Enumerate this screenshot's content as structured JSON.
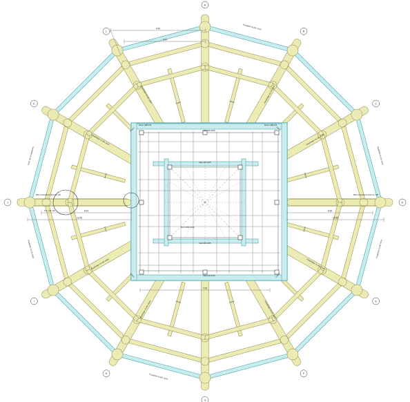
{
  "drawing": {
    "type": "timber-roof-framing-plan",
    "colors": {
      "beam_fill": "#ecebb3",
      "beam_edge": "#9c9860",
      "purlin_fill": "#c9ecee",
      "purlin_edge": "#4aa7b1",
      "line": "#555555",
      "dim": "#666666"
    },
    "axis_labels": [
      "A",
      "B",
      "C",
      "D",
      "E",
      "F",
      "G",
      "H",
      "I",
      "J",
      "K",
      "L"
    ],
    "rafter_labels": [
      "Hauptträger GL24h 16/40",
      "Hauptträger GL24h 16/40",
      "Hauptträger GL24h 16/40",
      "Hauptträger GL24h 16/40",
      "Hauptträger GL24h 16/40",
      "Hauptträger GL24h 16/40",
      "Hauptträger GL24h 16/40",
      "Hauptträger GL24h 16/40"
    ],
    "purlin_labels": [
      "Traufpfette GL24h 16/24",
      "Traufpfette GL24h 16/24",
      "Traufpfette GL24h 16/24",
      "Traufpfette GL24h 16/24",
      "Traufpfette GL24h 16/24",
      "Traufpfette GL24h 16/24"
    ],
    "field_labels": [
      "3.0mm",
      "3.0mm",
      "3.0mm",
      "3.0mm",
      "3.0mm",
      "3.0mm",
      "3.0mm",
      "3.0mm",
      "3.0mm",
      "3.0mm",
      "3.0mm",
      "3.0mm"
    ],
    "core_labels": {
      "top": "HEA 200 S235",
      "bottom": "HEA 200 S235",
      "inner_top": "HEA 160 S235",
      "inner_bottom": "HEA 160 S235",
      "left": "Stütze HEB 200",
      "right": "Stütze HEB 200",
      "center": "Rost 20/20 S235"
    },
    "dims": {
      "overall_left": "14.95",
      "overall_right": "14.95",
      "mid_left": "6.53",
      "mid_right": "6.53",
      "core": "7.00",
      "top_span": "4.40",
      "top_span2": "3.20"
    },
    "callouts": {
      "left_node": "BSH Knotenblech d=10 GL 24h",
      "left_node2": "Pos. 101-104",
      "right_node": "BSH Knotenblech d=10 GL 24h"
    }
  }
}
